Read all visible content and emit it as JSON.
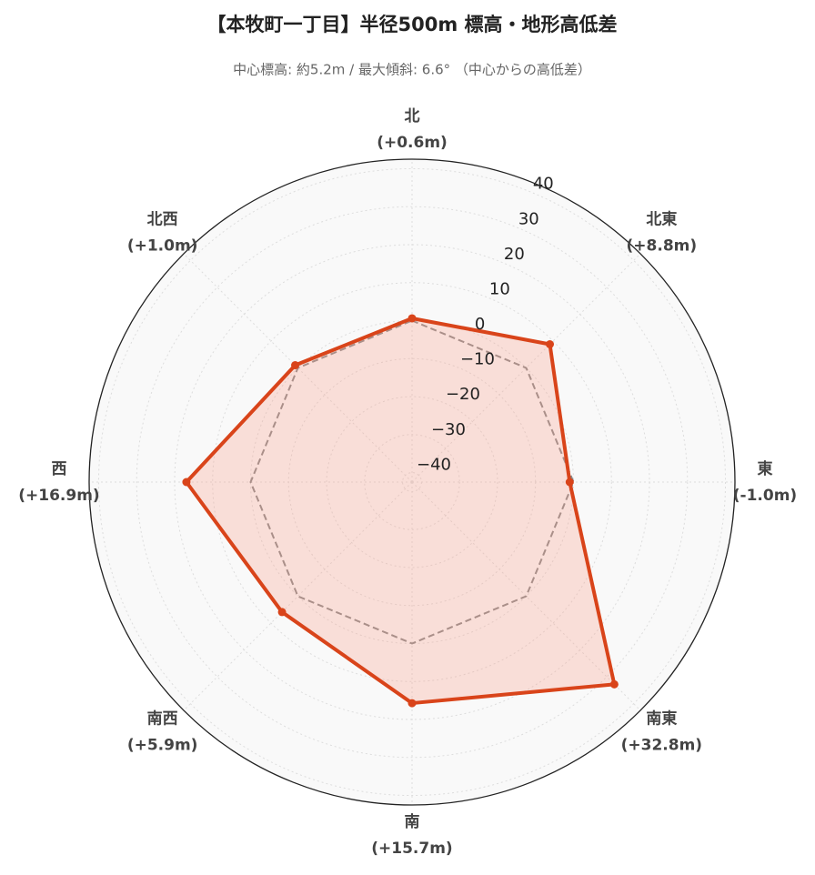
{
  "chart_data": {
    "type": "radar",
    "title": "【本牧町一丁目】半径500m 標高・地形高低差",
    "subtitle": "中心標高: 約5.2m / 最大傾斜: 6.6° （中心からの高低差）",
    "categories": [
      "北",
      "北東",
      "東",
      "南東",
      "南",
      "南西",
      "西",
      "北西"
    ],
    "series": [
      {
        "color": "#d9441a",
        "fill": "rgba(250,160,140,0.3)",
        "values": [
          0.6,
          8.8,
          -1.0,
          32.8,
          15.7,
          5.9,
          16.9,
          1.0
        ],
        "value_labels": [
          "(+0.6m)",
          "(+8.8m)",
          "(-1.0m)",
          "(+32.8m)",
          "(+15.7m)",
          "(+5.9m)",
          "(+16.9m)",
          "(+1.0m)"
        ]
      },
      {
        "color": "#888888",
        "dash": true,
        "values": [
          0,
          0,
          0,
          0,
          0,
          0,
          0,
          0
        ]
      }
    ],
    "ylim": [
      -42.5,
      42.5
    ],
    "yticks": [
      {
        "value": -40,
        "label": "−40"
      },
      {
        "value": -30,
        "label": "−30"
      },
      {
        "value": -20,
        "label": "−20"
      },
      {
        "value": -10,
        "label": "−10"
      },
      0,
      10,
      20,
      30,
      40
    ],
    "grid": true
  }
}
